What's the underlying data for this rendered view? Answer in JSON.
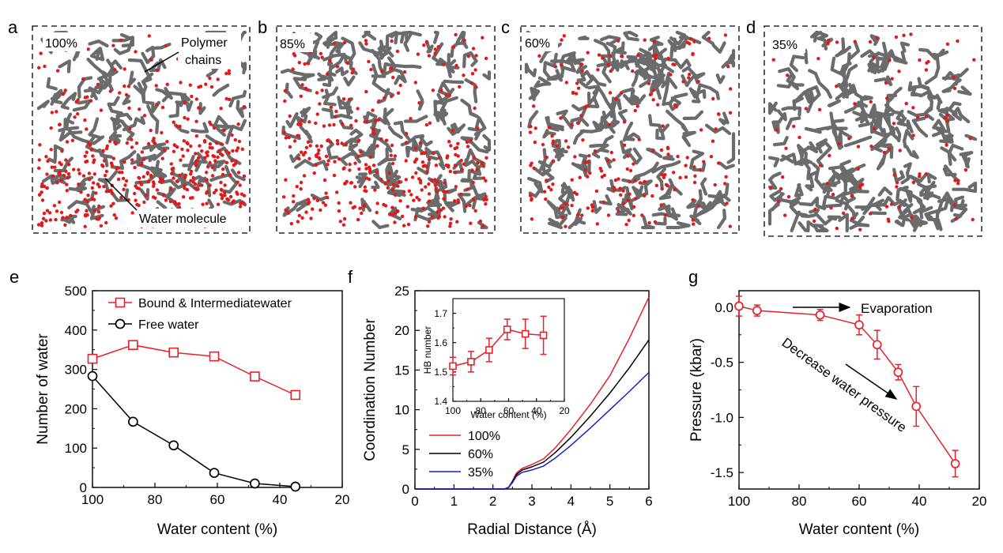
{
  "panels": {
    "a": {
      "letter": "a",
      "water_pct": "100%",
      "label_polymer_1": "Polymer",
      "label_polymer_2": "chains",
      "label_water": "Water molecule"
    },
    "b": {
      "letter": "b",
      "water_pct": "85%"
    },
    "c": {
      "letter": "c",
      "water_pct": "60%"
    },
    "d": {
      "letter": "d",
      "water_pct": "35%"
    }
  },
  "colors": {
    "red": "#e8202a",
    "black": "#000000",
    "blue": "#1c1ccc",
    "polymer": "#6b6b6b",
    "water": "#e01a1a"
  },
  "chart_data": [
    {
      "panel": "e",
      "type": "line",
      "xlabel": "Water content (%)",
      "ylabel": "Number of water",
      "xlim": [
        100,
        20
      ],
      "ylim": [
        0,
        500
      ],
      "xticks": [
        100,
        80,
        60,
        40,
        20
      ],
      "yticks": [
        0,
        100,
        200,
        300,
        400,
        500
      ],
      "legend_position": "top-left",
      "series": [
        {
          "name": "Bound & Intermediatewater",
          "marker": "square",
          "color": "#e8202a",
          "x": [
            100,
            87,
            74,
            61,
            48,
            35
          ],
          "y": [
            327,
            362,
            343,
            333,
            282,
            235
          ]
        },
        {
          "name": "Free water",
          "marker": "circle",
          "color": "#000000",
          "x": [
            100,
            87,
            74,
            61,
            48,
            35
          ],
          "y": [
            283,
            167,
            107,
            37,
            10,
            2
          ]
        }
      ]
    },
    {
      "panel": "f",
      "type": "line",
      "xlabel": "Radial Distance (Å)",
      "ylabel": "Coordination Number",
      "xlim": [
        0,
        6
      ],
      "ylim": [
        0,
        25
      ],
      "xticks": [
        0,
        1,
        2,
        3,
        4,
        5,
        6
      ],
      "yticks": [
        0,
        5,
        10,
        15,
        20,
        25
      ],
      "legend_position": "bottom-left",
      "series": [
        {
          "name": "100%",
          "color": "#e8202a",
          "x": [
            0,
            2.3,
            2.4,
            2.5,
            2.6,
            2.75,
            3.0,
            3.3,
            3.6,
            4.0,
            4.5,
            5.0,
            5.5,
            6.0
          ],
          "y": [
            0,
            0,
            0.2,
            1.0,
            2.0,
            2.6,
            3.1,
            3.8,
            5.2,
            7.5,
            10.7,
            14.3,
            19.0,
            24.2
          ]
        },
        {
          "name": "60%",
          "color": "#000000",
          "x": [
            0,
            2.3,
            2.4,
            2.5,
            2.6,
            2.75,
            3.0,
            3.3,
            3.6,
            4.0,
            4.5,
            5.0,
            5.5,
            6.0
          ],
          "y": [
            0,
            0,
            0.2,
            0.9,
            1.8,
            2.4,
            2.8,
            3.4,
            4.6,
            6.5,
            9.2,
            12.1,
            15.3,
            18.8
          ]
        },
        {
          "name": "35%",
          "color": "#1c1ccc",
          "x": [
            0,
            2.3,
            2.4,
            2.5,
            2.6,
            2.75,
            3.0,
            3.3,
            3.6,
            4.0,
            4.5,
            5.0,
            5.5,
            6.0
          ],
          "y": [
            0,
            0,
            0.2,
            0.8,
            1.6,
            2.1,
            2.4,
            2.9,
            3.9,
            5.5,
            7.7,
            10.0,
            12.3,
            14.7
          ]
        }
      ],
      "inset": {
        "type": "line",
        "xlabel": "Water content (%)",
        "ylabel": "HB number",
        "xlim": [
          100,
          20
        ],
        "ylim": [
          1.4,
          1.75
        ],
        "xticks": [
          100,
          80,
          60,
          40,
          20
        ],
        "yticks": [
          1.4,
          1.5,
          1.6,
          1.7
        ],
        "series": [
          {
            "name": "",
            "marker": "square",
            "color": "#e8202a",
            "x": [
              100,
              87,
              74,
              61,
              48,
              35
            ],
            "y": [
              1.52,
              1.535,
              1.575,
              1.645,
              1.63,
              1.625
            ],
            "err": [
              0.03,
              0.035,
              0.04,
              0.035,
              0.05,
              0.065
            ]
          }
        ]
      }
    },
    {
      "panel": "g",
      "type": "line",
      "xlabel": "Water content (%)",
      "ylabel": "Pressure (kbar)",
      "xlim": [
        100,
        20
      ],
      "ylim": [
        -1.65,
        0.15
      ],
      "xticks": [
        100,
        80,
        60,
        40,
        20
      ],
      "yticks": [
        0.0,
        -0.5,
        -1.0,
        -1.5
      ],
      "ytick_labels": [
        "0.0",
        "-0.5",
        "-1.0",
        "-1.5"
      ],
      "annotations": [
        "Evaporation",
        "Decrease water pressure"
      ],
      "series": [
        {
          "name": "",
          "marker": "circle",
          "color": "#e8202a",
          "x": [
            100,
            94,
            73,
            60,
            54,
            47,
            41,
            28
          ],
          "y": [
            0.01,
            -0.03,
            -0.07,
            -0.16,
            -0.34,
            -0.59,
            -0.9,
            -1.42
          ],
          "err": [
            0.09,
            0.05,
            0.05,
            0.09,
            0.13,
            0.07,
            0.18,
            0.12
          ]
        }
      ]
    }
  ]
}
